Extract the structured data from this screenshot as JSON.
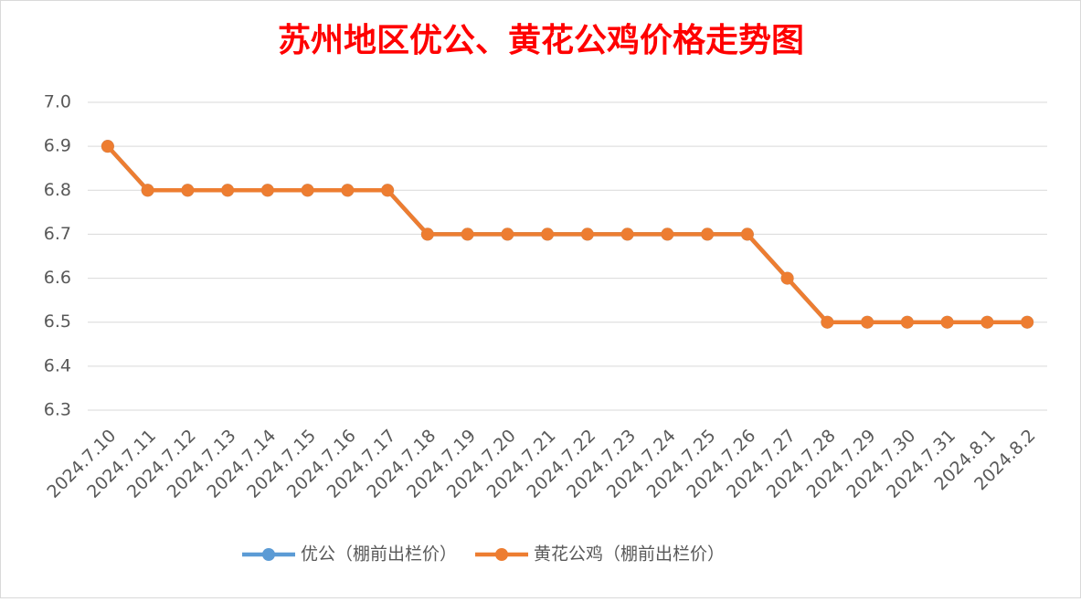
{
  "chart_data": {
    "type": "line",
    "title": "苏州地区优公、黄花公鸡价格走势图",
    "categories": [
      "2024.7.10",
      "2024.7.11",
      "2024.7.12",
      "2024.7.13",
      "2024.7.14",
      "2024.7.15",
      "2024.7.16",
      "2024.7.17",
      "2024.7.18",
      "2024.7.19",
      "2024.7.20",
      "2024.7.21",
      "2024.7.22",
      "2024.7.23",
      "2024.7.24",
      "2024.7.25",
      "2024.7.26",
      "2024.7.27",
      "2024.7.28",
      "2024.7.29",
      "2024.7.30",
      "2024.7.31",
      "2024.8.1",
      "2024.8.2"
    ],
    "series": [
      {
        "name": "优公（棚前出栏价）",
        "color": "#5b9bd5",
        "values": [
          6.9,
          6.8,
          6.8,
          6.8,
          6.8,
          6.8,
          6.8,
          6.8,
          6.7,
          6.7,
          6.7,
          6.7,
          6.7,
          6.7,
          6.7,
          6.7,
          6.7,
          6.6,
          6.5,
          6.5,
          6.5,
          6.5,
          6.5,
          6.5
        ]
      },
      {
        "name": "黄花公鸡（棚前出栏价）",
        "color": "#ed7d31",
        "values": [
          6.9,
          6.8,
          6.8,
          6.8,
          6.8,
          6.8,
          6.8,
          6.8,
          6.7,
          6.7,
          6.7,
          6.7,
          6.7,
          6.7,
          6.7,
          6.7,
          6.7,
          6.6,
          6.5,
          6.5,
          6.5,
          6.5,
          6.5,
          6.5
        ]
      }
    ],
    "ylim": [
      6.3,
      7.0
    ],
    "yticks": [
      6.3,
      6.4,
      6.5,
      6.6,
      6.7,
      6.8,
      6.9,
      {
        "value": 7.0,
        "label": "7.0"
      }
    ],
    "grid": true,
    "legend": "bottom"
  }
}
